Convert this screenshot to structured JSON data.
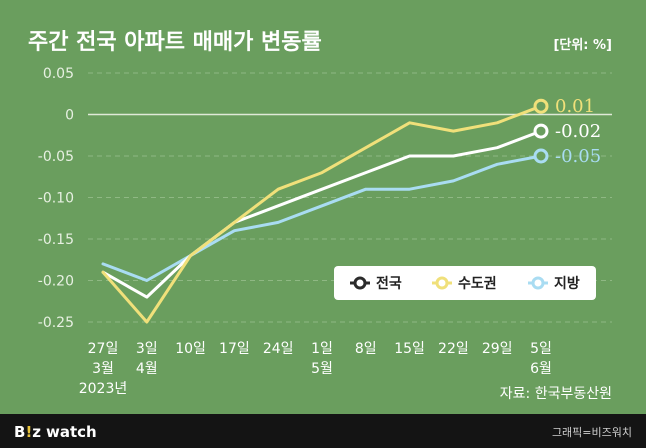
{
  "header": {
    "title": "주간 전국 아파트 매매가 변동률",
    "unit": "[단위: %]"
  },
  "source": "자료: 한국부동산원",
  "footer": {
    "brand_b": "B",
    "brand_i": "!",
    "brand_z": "z",
    "brand_watch": "watch",
    "credit": "그래픽=비즈워치"
  },
  "colors": {
    "background": "#6a9e5e",
    "전국": "#ffffff",
    "수도권": "#f0e07a",
    "지방": "#a9dcf2",
    "footer": "#141414"
  },
  "chart_data": {
    "type": "line",
    "ylim": [
      -0.25,
      0.05
    ],
    "yticks": [
      0.05,
      0,
      -0.05,
      -0.1,
      -0.15,
      -0.2,
      -0.25
    ],
    "ytick_labels": [
      "0.05",
      "0",
      "-0.05",
      "-0.10",
      "-0.15",
      "-0.20",
      "-0.25"
    ],
    "grid": true,
    "legend_position": "bottom-right",
    "categories": [
      "27일",
      "3일",
      "10일",
      "17일",
      "24일",
      "1일",
      "8일",
      "15일",
      "22일",
      "29일",
      "5일"
    ],
    "month_labels": [
      "3월",
      "4월",
      "",
      "",
      "",
      "5월",
      "",
      "",
      "",
      "",
      "6월"
    ],
    "year_label": "2023년",
    "series": [
      {
        "name": "전국",
        "values": [
          -0.19,
          -0.22,
          -0.17,
          -0.13,
          -0.11,
          -0.09,
          -0.07,
          -0.05,
          -0.05,
          -0.04,
          -0.02
        ],
        "end_label": "-0.02"
      },
      {
        "name": "수도권",
        "values": [
          -0.19,
          -0.25,
          -0.17,
          -0.13,
          -0.09,
          -0.07,
          -0.04,
          -0.01,
          -0.02,
          -0.01,
          0.01
        ],
        "end_label": "0.01"
      },
      {
        "name": "지방",
        "values": [
          -0.18,
          -0.2,
          -0.17,
          -0.14,
          -0.13,
          -0.11,
          -0.09,
          -0.09,
          -0.08,
          -0.06,
          -0.05
        ],
        "end_label": "-0.05"
      }
    ]
  }
}
